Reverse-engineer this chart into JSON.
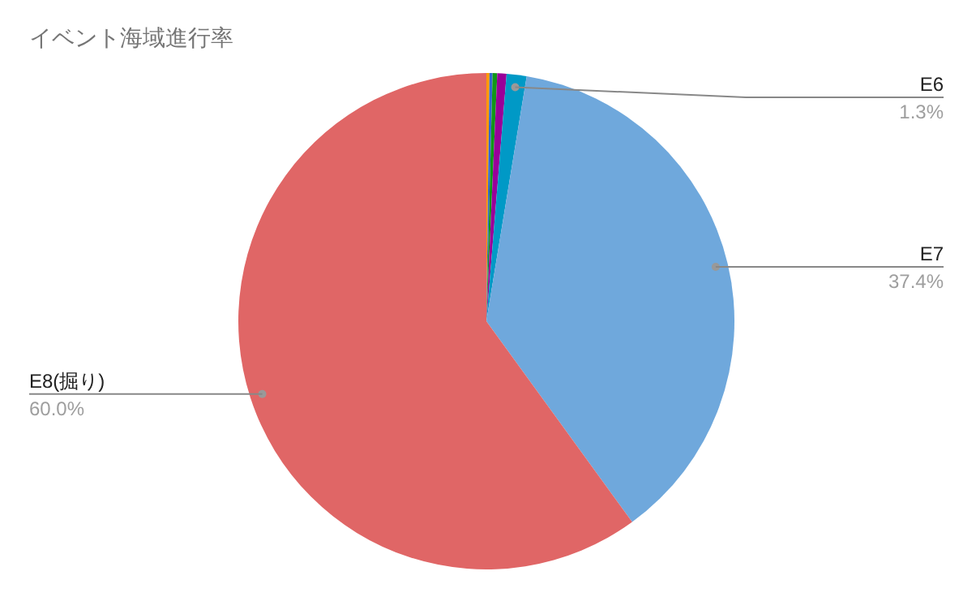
{
  "chart_data": {
    "type": "pie",
    "title": "イベント海域進行率",
    "categories": [
      null,
      null,
      null,
      null,
      "E6",
      "E7",
      "E8(掘り)"
    ],
    "values": [
      0.2,
      0.2,
      0.3,
      0.6,
      1.3,
      37.4,
      60.0
    ],
    "colors": [
      "#ff9900",
      "#3366cc",
      "#109618",
      "#990099",
      "#0099c6",
      "#6fa8dc",
      "#e06666"
    ],
    "value_labels": [
      null,
      null,
      null,
      null,
      "1.3%",
      "37.4%",
      "60.0%"
    ]
  }
}
